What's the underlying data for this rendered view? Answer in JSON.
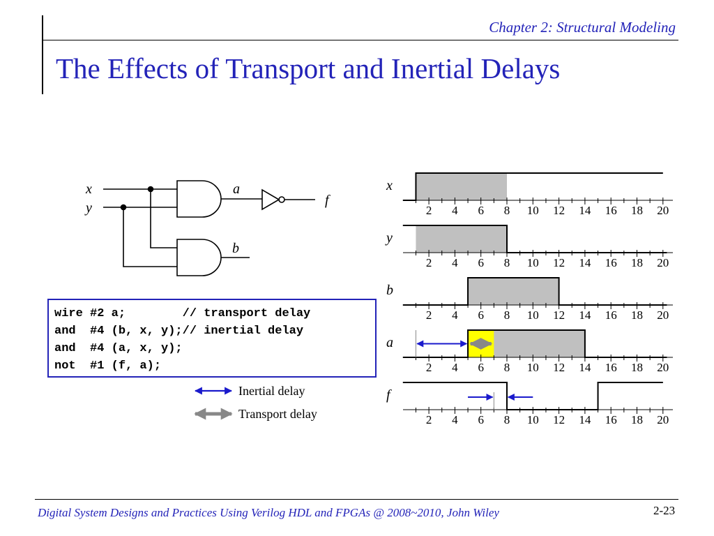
{
  "header": {
    "chapter": "Chapter 2: Structural Modeling",
    "title": "The Effects of Transport and Inertial Delays"
  },
  "circuit": {
    "inputs": [
      "x",
      "y"
    ],
    "outputs": [
      "a",
      "b",
      "f"
    ]
  },
  "code": {
    "lines": [
      "wire #2 a;        // transport delay",
      "and  #4 (b, x, y);// inertial delay",
      "and  #4 (a, x, y);",
      "not  #1 (f, a);"
    ]
  },
  "legend": {
    "inertial": "Inertial delay",
    "transport": "Transport delay"
  },
  "timing": {
    "tick_labels": [
      "2",
      "4",
      "6",
      "8",
      "10",
      "12",
      "14",
      "16",
      "18",
      "20"
    ],
    "signals": [
      {
        "name": "x",
        "high": [
          [
            1,
            20
          ]
        ],
        "shaded": [
          [
            1,
            8
          ]
        ]
      },
      {
        "name": "y",
        "high": [
          [
            0,
            8
          ]
        ],
        "shaded": [
          [
            1,
            8
          ]
        ]
      },
      {
        "name": "b",
        "high": [
          [
            5,
            12
          ]
        ],
        "shaded": [
          [
            5,
            12
          ]
        ]
      },
      {
        "name": "a",
        "high": [
          [
            5,
            14
          ]
        ],
        "shaded": [
          [
            5,
            14
          ]
        ],
        "highlight": [
          5,
          7
        ]
      },
      {
        "name": "f",
        "high": [
          [
            0,
            8
          ],
          [
            15,
            20
          ]
        ],
        "shaded": []
      }
    ]
  },
  "colors": {
    "heading": "#2323b8",
    "inertial_arrow": "#1a1acc",
    "transport_arrow": "#888888",
    "highlight": "#ffff00",
    "shade": "#c0c0c0"
  },
  "footer": {
    "text": "Digital System Designs and Practices Using Verilog HDL and FPGAs @ 2008~2010, John Wiley",
    "page": "2-23"
  }
}
